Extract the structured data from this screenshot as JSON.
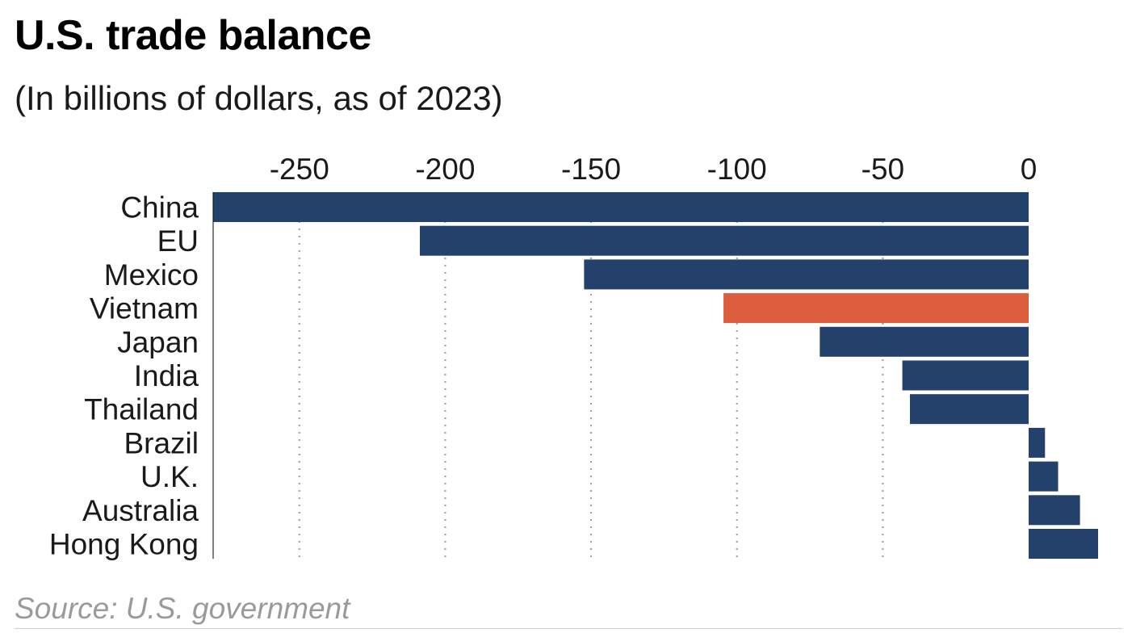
{
  "header": {
    "title": "U.S. trade balance",
    "subtitle": "(In billions of dollars, as of 2023)"
  },
  "footer": {
    "source": "Source: U.S. government"
  },
  "colors": {
    "bar_default": "#24416c",
    "bar_highlight": "#dc5e3c",
    "gridline": "#9c9c9c",
    "axis": "#000000"
  },
  "chart_data": {
    "type": "bar",
    "orientation": "horizontal",
    "title": "U.S. trade balance",
    "subtitle": "(In billions of dollars, as of 2023)",
    "xlabel": "",
    "ylabel": "",
    "xlim": [
      -280,
      25
    ],
    "ticks": [
      -250,
      -200,
      -150,
      -100,
      -50,
      0
    ],
    "tick_labels": [
      "-250",
      "-200",
      "-150",
      "-100",
      "-50",
      "0"
    ],
    "axis_position": "top",
    "grid": "dotted vertical",
    "categories": [
      "China",
      "EU",
      "Mexico",
      "Vietnam",
      "Japan",
      "India",
      "Thailand",
      "Brazil",
      "U.K.",
      "Australia",
      "Hong Kong"
    ],
    "values": [
      -279.4,
      -208.7,
      -152.4,
      -104.6,
      -71.6,
      -43.3,
      -40.7,
      5.6,
      10.1,
      17.6,
      23.8
    ],
    "highlight": "Vietnam"
  }
}
